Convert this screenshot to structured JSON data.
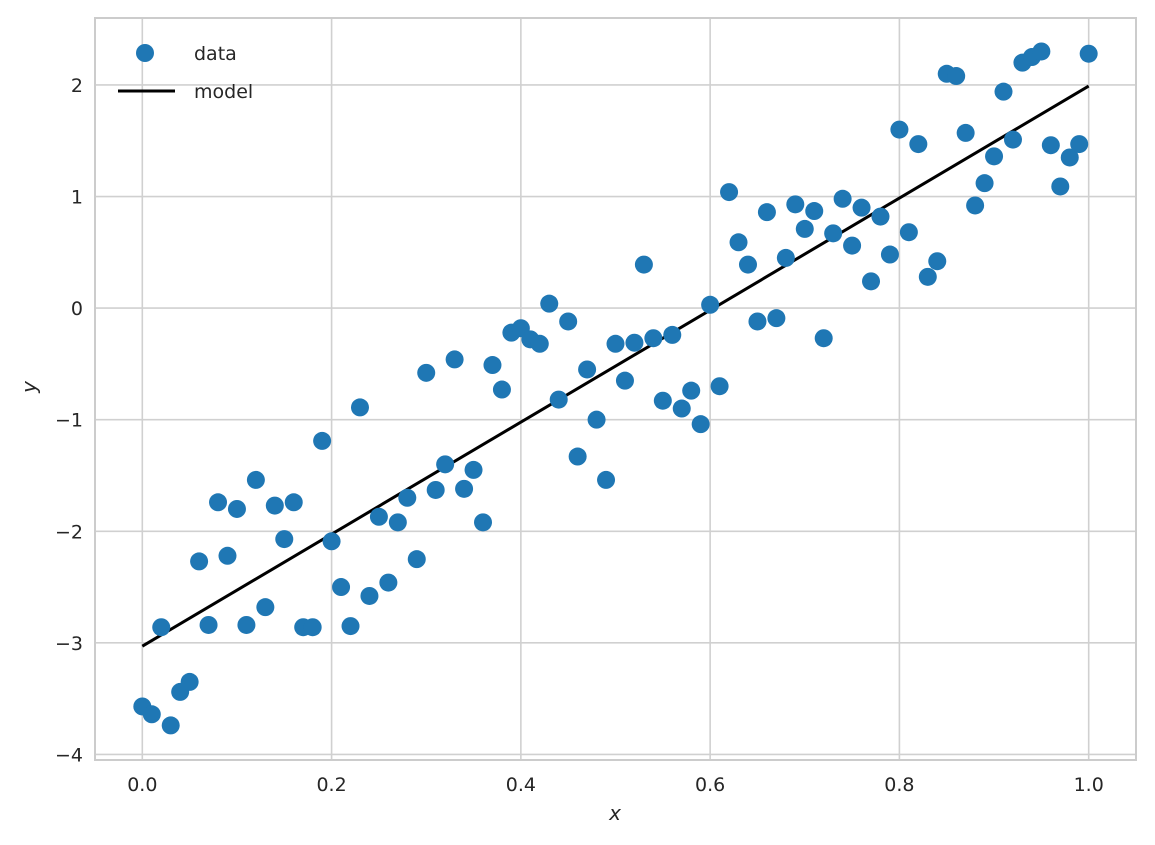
{
  "chart_data": {
    "type": "scatter",
    "title": "",
    "xlabel": "x",
    "ylabel": "y",
    "xlim": [
      -0.05,
      1.05
    ],
    "ylim": [
      -4.05,
      2.6
    ],
    "grid": true,
    "legend_position": "top-left",
    "x_ticks": [
      {
        "value": 0.0,
        "label": "0.0"
      },
      {
        "value": 0.2,
        "label": "0.2"
      },
      {
        "value": 0.4,
        "label": "0.4"
      },
      {
        "value": 0.6,
        "label": "0.6"
      },
      {
        "value": 0.8,
        "label": "0.8"
      },
      {
        "value": 1.0,
        "label": "1.0"
      }
    ],
    "y_ticks": [
      {
        "value": -4,
        "label": "−4"
      },
      {
        "value": -3,
        "label": "−3"
      },
      {
        "value": -2,
        "label": "−2"
      },
      {
        "value": -1,
        "label": "−1"
      },
      {
        "value": 0,
        "label": "0"
      },
      {
        "value": 1,
        "label": "1"
      },
      {
        "value": 2,
        "label": "2"
      }
    ],
    "series": [
      {
        "name": "data",
        "kind": "scatter",
        "color": "#1f77b4",
        "x": [
          0.0,
          0.01,
          0.02,
          0.03,
          0.04,
          0.05,
          0.06,
          0.07,
          0.08,
          0.09,
          0.1,
          0.11,
          0.12,
          0.13,
          0.14,
          0.15,
          0.16,
          0.17,
          0.18,
          0.19,
          0.2,
          0.21,
          0.22,
          0.23,
          0.24,
          0.25,
          0.26,
          0.27,
          0.28,
          0.29,
          0.3,
          0.31,
          0.32,
          0.33,
          0.34,
          0.35,
          0.36,
          0.37,
          0.38,
          0.39,
          0.4,
          0.41,
          0.42,
          0.43,
          0.44,
          0.45,
          0.46,
          0.47,
          0.48,
          0.49,
          0.5,
          0.51,
          0.52,
          0.53,
          0.54,
          0.55,
          0.56,
          0.57,
          0.58,
          0.59,
          0.6,
          0.61,
          0.62,
          0.63,
          0.64,
          0.65,
          0.66,
          0.67,
          0.68,
          0.69,
          0.7,
          0.71,
          0.72,
          0.73,
          0.74,
          0.75,
          0.76,
          0.77,
          0.78,
          0.79,
          0.8,
          0.81,
          0.82,
          0.83,
          0.84,
          0.85,
          0.86,
          0.87,
          0.88,
          0.89,
          0.9,
          0.91,
          0.92,
          0.93,
          0.94,
          0.95,
          0.96,
          0.97,
          0.98,
          0.99,
          1.0
        ],
        "y": [
          -3.57,
          -3.64,
          -2.86,
          -3.74,
          -3.44,
          -3.35,
          -2.27,
          -2.84,
          -1.74,
          -2.22,
          -1.8,
          -2.84,
          -1.54,
          -2.68,
          -1.77,
          -2.07,
          -1.74,
          -2.86,
          -2.86,
          -1.19,
          -2.09,
          -2.5,
          -2.85,
          -0.89,
          -2.58,
          -1.87,
          -2.46,
          -1.92,
          -1.7,
          -2.25,
          -0.58,
          -1.63,
          -1.4,
          -0.46,
          -1.62,
          -1.45,
          -1.92,
          -0.51,
          -0.73,
          -0.22,
          -0.18,
          -0.28,
          -0.32,
          0.04,
          -0.82,
          -0.12,
          -1.33,
          -0.55,
          -1.0,
          -1.54,
          -0.32,
          -0.65,
          -0.31,
          0.39,
          -0.27,
          -0.83,
          -0.24,
          -0.9,
          -0.74,
          -1.04,
          0.03,
          -0.7,
          1.04,
          0.59,
          0.39,
          -0.12,
          0.86,
          -0.09,
          0.45,
          0.93,
          0.71,
          0.87,
          -0.27,
          0.67,
          0.98,
          0.56,
          0.9,
          0.24,
          0.82,
          0.48,
          1.6,
          0.68,
          1.47,
          0.28,
          0.42,
          2.1,
          2.08,
          1.57,
          0.92,
          1.12,
          1.36,
          1.94,
          1.51,
          2.2,
          2.25,
          2.3,
          1.46,
          1.09,
          1.35,
          1.47,
          2.28
        ]
      },
      {
        "name": "model",
        "kind": "line",
        "color": "#000000",
        "x": [
          0.0,
          1.0
        ],
        "y": [
          -3.03,
          1.99
        ]
      }
    ]
  }
}
